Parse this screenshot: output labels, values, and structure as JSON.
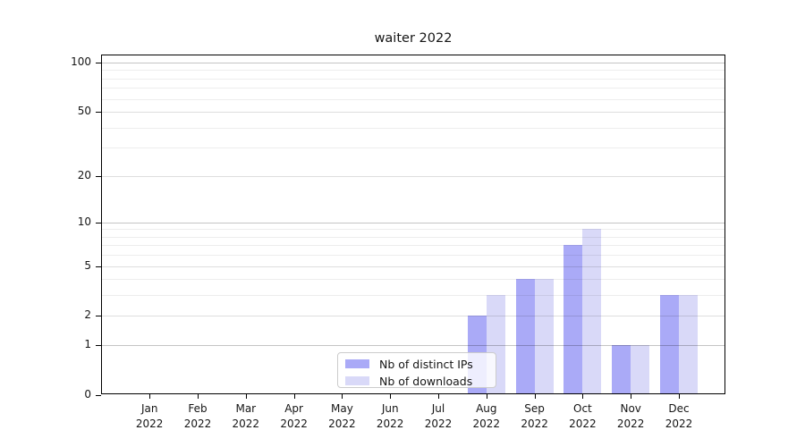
{
  "title": "waiter 2022",
  "colors": {
    "bar_distinct_ips": "#aaaaf7",
    "bar_downloads": "#d9d9f8",
    "gridline_major": "#c4c4c4",
    "gridline_medium": "#e0e0e0",
    "gridline_minor": "#eeeeee",
    "axis": "#000000",
    "legend_border": "#cccccc",
    "background": "#ffffff"
  },
  "chart_data": {
    "type": "bar",
    "title": "waiter 2022",
    "categories": [
      "Jan 2022",
      "Feb 2022",
      "Mar 2022",
      "Apr 2022",
      "May 2022",
      "Jun 2022",
      "Jul 2022",
      "Aug 2022",
      "Sep 2022",
      "Oct 2022",
      "Nov 2022",
      "Dec 2022"
    ],
    "series": [
      {
        "name": "Nb of distinct IPs",
        "color": "#aaaaf7",
        "values": [
          0,
          0,
          0,
          0,
          0,
          0,
          0,
          2,
          4,
          7,
          1,
          3
        ]
      },
      {
        "name": "Nb of downloads",
        "color": "#d9d9f8",
        "values": [
          0,
          0,
          0,
          0,
          0,
          0,
          0,
          3,
          4,
          9,
          1,
          3
        ]
      }
    ],
    "xlabel": "",
    "ylabel": "",
    "y_scale": "log10(1+v)",
    "ylim": [
      0,
      110
    ],
    "y_axis_ticks": [
      0,
      1,
      2,
      5,
      10,
      20,
      50,
      100
    ],
    "y_gridlines": {
      "major": [
        1,
        10,
        100
      ],
      "medium": [
        2,
        5,
        20,
        50
      ],
      "minor": [
        3,
        4,
        6,
        7,
        8,
        9,
        30,
        40,
        60,
        70,
        80,
        90
      ]
    },
    "grid": true,
    "legend_position": "lower center-left inside plot"
  }
}
